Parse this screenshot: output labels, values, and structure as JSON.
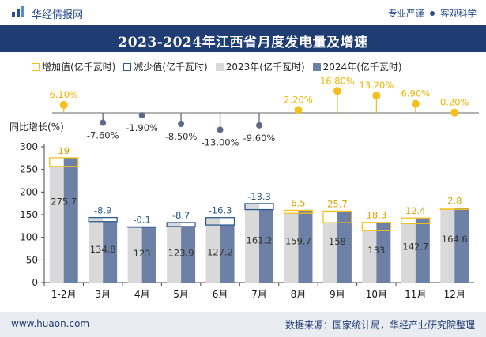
{
  "header": {
    "brand_name": "华经情报网",
    "tag1": "专业严谨",
    "tag2": "客观科学"
  },
  "title": "2023-2024年江西省月度发电量及增速",
  "legend": {
    "increase": "增加值(亿千瓦时)",
    "decrease": "减少值(亿千瓦时)",
    "y2023": "2023年(亿千瓦时)",
    "y2024": "2024年(亿千瓦时)"
  },
  "ylabel": "同比增长(%)",
  "footer": {
    "site": "www.huaon.com",
    "source": "数据来源：国家统计局，华经产业研究院整理"
  },
  "colors": {
    "title_bg": "#1f3d73",
    "bar_2023": "#d9d9d9",
    "bar_2024": "#6d80a6",
    "increase": "#f6c01c",
    "decrease": "#2e5b8f",
    "growth_up": "#f6c01c",
    "growth_down": "#5b6b86"
  },
  "chart_data": {
    "type": "bar",
    "categories": [
      "1-2月",
      "3月",
      "4月",
      "5月",
      "6月",
      "7月",
      "8月",
      "9月",
      "10月",
      "11月",
      "12月"
    ],
    "series": [
      {
        "name": "2023年(亿千瓦时)",
        "values": [
          256.7,
          143.7,
          123.1,
          132.6,
          143.5,
          174.5,
          153.2,
          132.3,
          114.7,
          130.3,
          161.8
        ]
      },
      {
        "name": "2024年(亿千瓦时)",
        "values": [
          275.7,
          134.8,
          123,
          123.9,
          127.2,
          161.2,
          159.7,
          158,
          133,
          142.7,
          164.6
        ]
      }
    ],
    "change_labels": [
      "19",
      "-8.9",
      "-0.1",
      "-8.7",
      "-16.3",
      "-13.3",
      "6.5",
      "25.7",
      "18.3",
      "12.4",
      "2.8"
    ],
    "value_labels": [
      "275.7",
      "134.8",
      "123",
      "123.9",
      "127.2",
      "161.2",
      "159.7",
      "158",
      "133",
      "142.7",
      "164.6"
    ],
    "growth_pct": [
      6.1,
      -7.6,
      -1.9,
      -8.5,
      -13.0,
      -9.6,
      2.2,
      16.8,
      13.2,
      6.9,
      0.2
    ],
    "growth_labels": [
      "6.10%",
      "-7.60%",
      "-1.90%",
      "-8.50%",
      "-13.00%",
      "-9.60%",
      "2.20%",
      "16.80%",
      "13.20%",
      "6.90%",
      "0.20%"
    ],
    "yticks": [
      "0",
      "50",
      "100",
      "150",
      "200",
      "250",
      "300"
    ],
    "ylim": [
      0,
      300
    ],
    "grid": false,
    "legend_position": "top"
  }
}
